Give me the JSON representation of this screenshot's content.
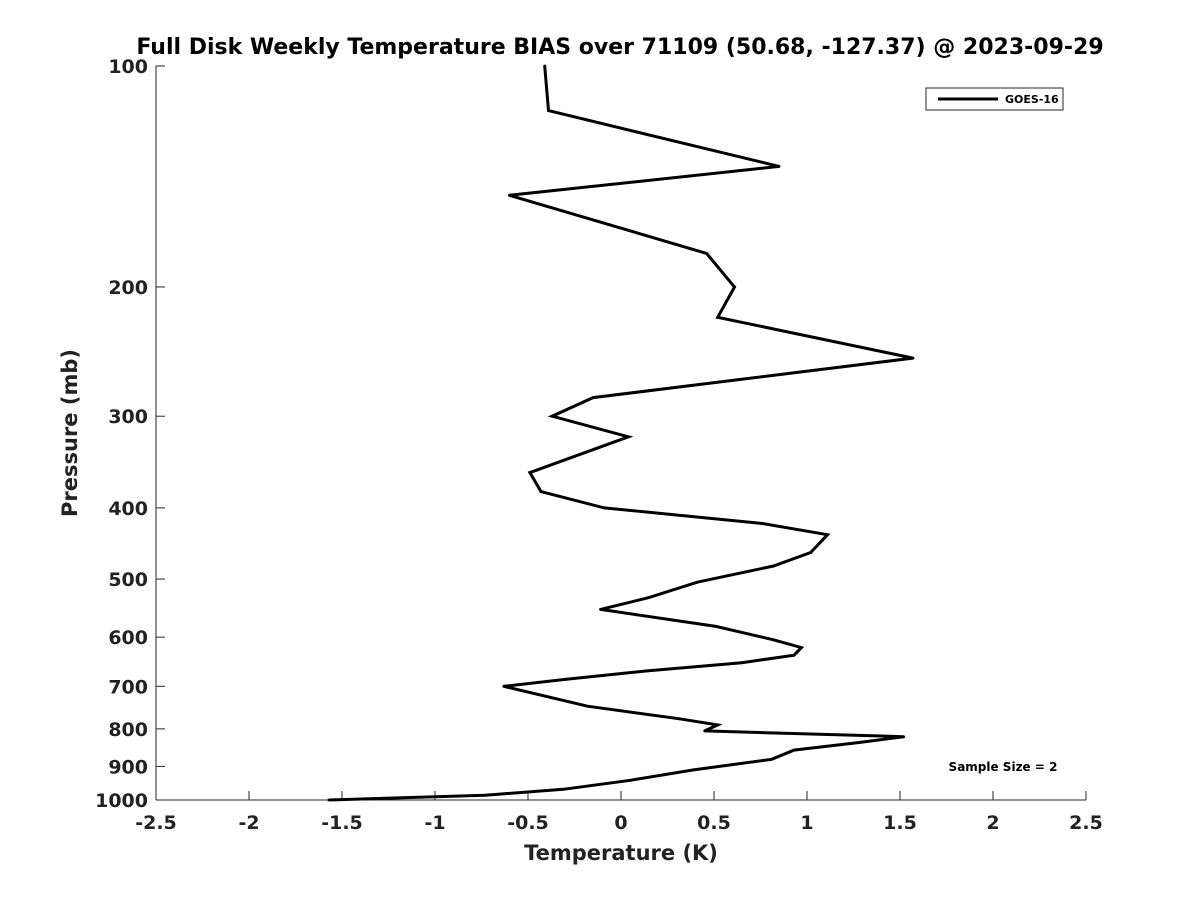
{
  "chart_data": {
    "type": "line",
    "title": "Full Disk Weekly Temperature BIAS over 71109 (50.68, -127.37) @ 2023-09-29",
    "xlabel": "Temperature (K)",
    "ylabel": "Pressure (mb)",
    "xlim": [
      -2.5,
      2.5
    ],
    "ylim": [
      100,
      1000
    ],
    "y_scale": "log",
    "y_reversed": true,
    "grid": false,
    "xticks": [
      -2.5,
      -2,
      -1.5,
      -1,
      -0.5,
      0,
      0.5,
      1,
      1.5,
      2,
      2.5
    ],
    "xtick_labels": [
      "-2.5",
      "-2",
      "-1.5",
      "-1",
      "-0.5",
      "0",
      "0.5",
      "1",
      "1.5",
      "2",
      "2.5"
    ],
    "yticks": [
      100,
      200,
      300,
      400,
      500,
      600,
      700,
      800,
      900,
      1000
    ],
    "ytick_labels": [
      "100",
      "200",
      "300",
      "400",
      "500",
      "600",
      "700",
      "800",
      "900",
      "1000"
    ],
    "legend_position": "top-right",
    "series": [
      {
        "name": "GOES-16",
        "color": "#000000",
        "x": [
          -0.41,
          -0.39,
          0.85,
          -0.6,
          0.46,
          0.61,
          0.52,
          1.57,
          -0.15,
          -0.37,
          0.04,
          -0.49,
          -0.43,
          -0.09,
          0.76,
          1.11,
          1.02,
          0.82,
          0.41,
          0.15,
          -0.11,
          0.51,
          0.82,
          0.97,
          0.93,
          0.65,
          0.14,
          -0.3,
          -0.63,
          -0.18,
          0.31,
          0.52,
          0.45,
          1.52,
          1.28,
          0.93,
          0.81,
          0.39,
          0.05,
          -0.31,
          -0.73,
          -1.57
        ],
        "y": [
          100,
          115,
          137,
          150,
          180,
          200,
          220,
          250,
          283,
          300,
          320,
          358,
          380,
          400,
          420,
          435,
          460,
          480,
          505,
          530,
          550,
          580,
          605,
          620,
          635,
          650,
          667,
          685,
          700,
          745,
          775,
          790,
          805,
          820,
          835,
          855,
          880,
          910,
          940,
          967,
          985,
          1000
        ]
      }
    ],
    "annotations": [
      "Sample Size = 2"
    ]
  }
}
